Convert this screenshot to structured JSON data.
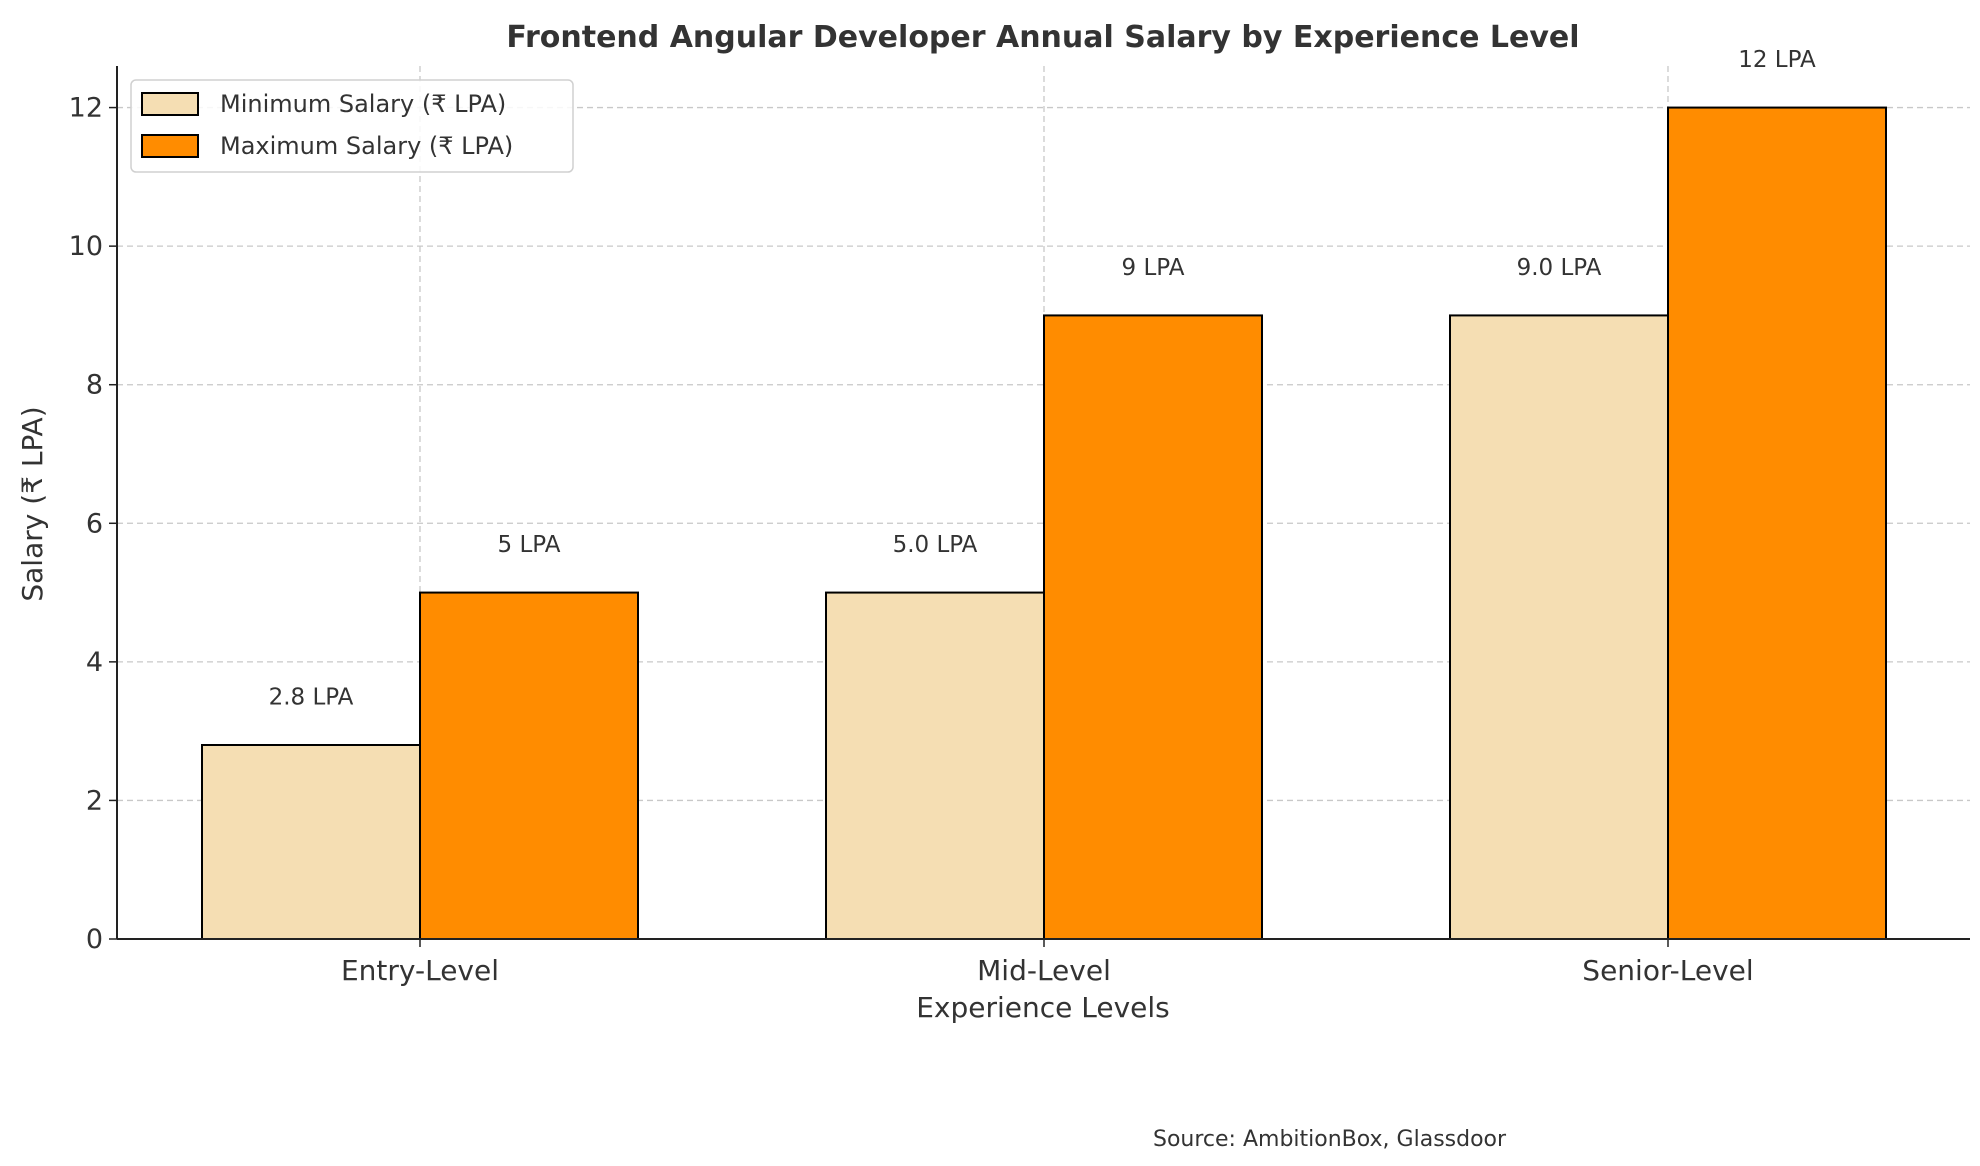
{
  "chart_data": {
    "type": "bar",
    "title": "Frontend Angular Developer Annual Salary by Experience Level",
    "xlabel": "Experience Levels",
    "ylabel": "Salary (₹ LPA)",
    "categories": [
      "Entry-Level",
      "Mid-Level",
      "Senior-Level"
    ],
    "series": [
      {
        "name": "Minimum Salary (₹ LPA)",
        "values": [
          2.8,
          5.0,
          9.0
        ],
        "labels": [
          "2.8 LPA",
          "5.0 LPA",
          "9.0 LPA"
        ],
        "color": "#F5DEB3"
      },
      {
        "name": "Maximum Salary (₹ LPA)",
        "values": [
          5,
          9,
          12
        ],
        "labels": [
          "5 LPA",
          "9 LPA",
          "12 LPA"
        ],
        "color": "#FF8C00"
      }
    ],
    "ylim": [
      0,
      12.6
    ],
    "yticks": [
      0,
      2,
      4,
      6,
      8,
      10,
      12
    ],
    "grid": true,
    "legend": "top-left",
    "source": "Source: AmbitionBox, Glassdoor"
  }
}
